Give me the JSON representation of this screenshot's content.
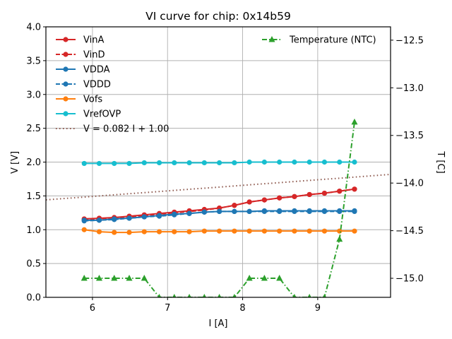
{
  "chart_data": {
    "type": "line",
    "title": "VI curve for chip: 0x14b59",
    "xlabel": "I [A]",
    "ylabel": "V [V]",
    "y2label": "T [C]",
    "xlim": [
      5.38,
      9.97
    ],
    "ylim": [
      0.0,
      4.0
    ],
    "y2lim": [
      -15.2,
      -12.36
    ],
    "grid": true,
    "x_ticks": [
      6,
      7,
      8,
      9
    ],
    "x_tick_labels": [
      "6",
      "7",
      "8",
      "9"
    ],
    "y_ticks": [
      0.0,
      0.5,
      1.0,
      1.5,
      2.0,
      2.5,
      3.0,
      3.5,
      4.0
    ],
    "y_tick_labels": [
      "0.0",
      "0.5",
      "1.0",
      "1.5",
      "2.0",
      "2.5",
      "3.0",
      "3.5",
      "4.0"
    ],
    "y2_ticks": [
      -15.0,
      -14.5,
      -14.0,
      -13.5,
      -13.0,
      -12.5
    ],
    "y2_tick_labels": [
      "−15.0",
      "−14.5",
      "−14.0",
      "−13.5",
      "−13.0",
      "−12.5"
    ],
    "x": [
      5.89,
      6.09,
      6.29,
      6.49,
      6.69,
      6.89,
      7.09,
      7.29,
      7.49,
      7.69,
      7.89,
      8.09,
      8.29,
      8.49,
      8.69,
      8.89,
      9.09,
      9.29,
      9.49
    ],
    "series": [
      {
        "name": "VinA",
        "axis": "left",
        "color": "#d62728",
        "dash": "solid",
        "marker": "circle",
        "values": [
          1.16,
          1.17,
          1.18,
          1.2,
          1.22,
          1.24,
          1.26,
          1.28,
          1.3,
          1.32,
          1.36,
          1.41,
          1.44,
          1.47,
          1.49,
          1.52,
          1.54,
          1.57,
          1.6
        ]
      },
      {
        "name": "VinD",
        "axis": "left",
        "color": "#d62728",
        "dash": "dashed",
        "marker": "circle",
        "values": [
          1.15,
          1.16,
          1.18,
          1.19,
          1.21,
          1.23,
          1.25,
          1.27,
          1.29,
          1.32,
          1.36,
          1.41,
          1.44,
          1.47,
          1.49,
          1.52,
          1.54,
          1.57,
          1.6
        ]
      },
      {
        "name": "VDDA",
        "axis": "left",
        "color": "#1f77b4",
        "dash": "solid",
        "marker": "circle",
        "values": [
          1.14,
          1.14,
          1.16,
          1.17,
          1.19,
          1.21,
          1.23,
          1.24,
          1.26,
          1.27,
          1.27,
          1.27,
          1.28,
          1.28,
          1.28,
          1.28,
          1.28,
          1.28,
          1.28
        ]
      },
      {
        "name": "VDDD",
        "axis": "left",
        "color": "#1f77b4",
        "dash": "dashed",
        "marker": "circle",
        "values": [
          1.13,
          1.14,
          1.15,
          1.17,
          1.19,
          1.2,
          1.22,
          1.24,
          1.26,
          1.27,
          1.27,
          1.27,
          1.27,
          1.27,
          1.27,
          1.27,
          1.27,
          1.27,
          1.27
        ]
      },
      {
        "name": "Vofs",
        "axis": "left",
        "color": "#ff7f0e",
        "dash": "solid",
        "marker": "circle",
        "values": [
          1.0,
          0.97,
          0.96,
          0.96,
          0.97,
          0.97,
          0.97,
          0.97,
          0.98,
          0.98,
          0.98,
          0.98,
          0.98,
          0.98,
          0.98,
          0.98,
          0.98,
          0.98,
          0.98
        ]
      },
      {
        "name": "VrefOVP",
        "axis": "left",
        "color": "#17becf",
        "dash": "solid",
        "marker": "circle",
        "values": [
          1.98,
          1.98,
          1.98,
          1.98,
          1.99,
          1.99,
          1.99,
          1.99,
          1.99,
          1.99,
          1.99,
          2.0,
          2.0,
          2.0,
          2.0,
          2.0,
          2.0,
          2.0,
          2.0
        ]
      },
      {
        "name": "Temperature (NTC)",
        "axis": "right",
        "color": "#2ca02c",
        "dash": "dashdot",
        "marker": "triangle",
        "values": [
          -15.0,
          -15.0,
          -15.0,
          -15.0,
          -15.0,
          -15.2,
          -15.2,
          -15.2,
          -15.2,
          -15.2,
          -15.2,
          -15.0,
          -15.0,
          -15.0,
          -15.2,
          -15.2,
          -15.2,
          -14.59,
          -13.36
        ]
      }
    ],
    "fit_line": {
      "name": "V = 0.082 I + 1.00",
      "slope": 0.082,
      "intercept": 1.0,
      "color": "#8c564b",
      "dash": "dotted"
    },
    "legend_left": {
      "placement": "upper-left",
      "entries": [
        "VinA",
        "VinD",
        "VDDA",
        "VDDD",
        "Vofs",
        "VrefOVP",
        "V = 0.082 I + 1.00"
      ]
    },
    "legend_right": {
      "placement": "upper-right",
      "entries": [
        "Temperature (NTC)"
      ]
    }
  }
}
